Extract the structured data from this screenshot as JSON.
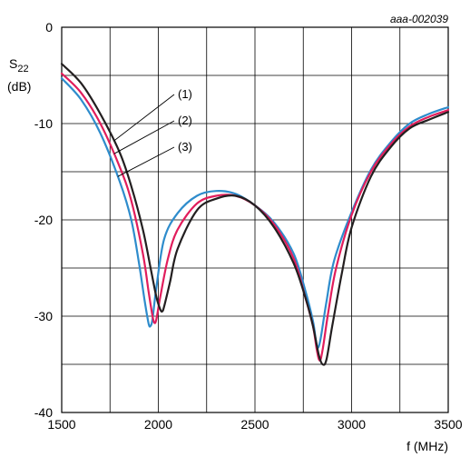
{
  "doc_id": "aaa-002039",
  "chart_data": {
    "type": "line",
    "ylabel_main": "S",
    "ylabel_sub": "22",
    "ylabel_unit": "(dB)",
    "xlabel": "f (MHz)",
    "xlim": [
      1500,
      3500
    ],
    "ylim": [
      -40,
      0
    ],
    "grid": true,
    "x_ticks": [
      1500,
      2000,
      2500,
      3000,
      3500
    ],
    "x_tick_labels": [
      "1500",
      "2000",
      "2500",
      "3000",
      "3500"
    ],
    "y_ticks": [
      0,
      -10,
      -20,
      -30,
      -40
    ],
    "y_tick_labels": [
      "0",
      "-10",
      "-20",
      "-30",
      "-40"
    ],
    "series": [
      {
        "name": "(1)",
        "color": "#231f20",
        "x": [
          1500,
          1600,
          1700,
          1800,
          1860,
          1920,
          1960,
          1990,
          2010,
          2020,
          2030,
          2060,
          2100,
          2200,
          2300,
          2400,
          2500,
          2600,
          2700,
          2760,
          2800,
          2830,
          2850,
          2870,
          2900,
          2950,
          3000,
          3100,
          3200,
          3300,
          3400,
          3500
        ],
        "y": [
          -3.8,
          -5.8,
          -9.0,
          -13.0,
          -16.5,
          -21.0,
          -25.0,
          -28.0,
          -29.3,
          -29.5,
          -29.0,
          -26.5,
          -23.0,
          -19.0,
          -17.8,
          -17.5,
          -18.5,
          -20.8,
          -24.5,
          -28.0,
          -31.0,
          -34.0,
          -35.0,
          -34.5,
          -31.0,
          -25.5,
          -20.8,
          -15.5,
          -12.5,
          -10.5,
          -9.6,
          -8.8
        ]
      },
      {
        "name": "(2)",
        "color": "#e11d5c",
        "x": [
          1500,
          1600,
          1700,
          1800,
          1860,
          1920,
          1950,
          1970,
          1980,
          1990,
          2010,
          2050,
          2100,
          2200,
          2300,
          2400,
          2500,
          2600,
          2700,
          2760,
          2800,
          2820,
          2835,
          2850,
          2880,
          2920,
          3000,
          3100,
          3200,
          3300,
          3400,
          3500
        ],
        "y": [
          -4.8,
          -6.8,
          -10.0,
          -14.5,
          -18.0,
          -23.5,
          -27.5,
          -30.0,
          -30.7,
          -30.3,
          -28.0,
          -24.0,
          -21.0,
          -18.3,
          -17.5,
          -17.5,
          -18.5,
          -20.5,
          -24.0,
          -28.0,
          -31.0,
          -33.5,
          -34.6,
          -33.5,
          -29.5,
          -25.0,
          -19.5,
          -15.0,
          -12.2,
          -10.3,
          -9.3,
          -8.6
        ]
      },
      {
        "name": "(3)",
        "color": "#2e8ccc",
        "x": [
          1500,
          1600,
          1700,
          1800,
          1860,
          1900,
          1930,
          1950,
          1960,
          1970,
          1990,
          2030,
          2100,
          2200,
          2300,
          2400,
          2500,
          2600,
          2700,
          2760,
          2800,
          2815,
          2825,
          2840,
          2870,
          2910,
          3000,
          3100,
          3200,
          3300,
          3400,
          3500
        ],
        "y": [
          -5.3,
          -7.5,
          -11.0,
          -16.0,
          -20.0,
          -24.5,
          -28.5,
          -30.8,
          -31.0,
          -30.3,
          -27.0,
          -22.0,
          -19.3,
          -17.5,
          -17.0,
          -17.3,
          -18.5,
          -20.3,
          -23.5,
          -27.3,
          -30.5,
          -32.5,
          -33.3,
          -32.3,
          -28.5,
          -24.2,
          -19.2,
          -14.8,
          -12.0,
          -10.0,
          -9.0,
          -8.3
        ]
      }
    ],
    "annotations": [
      {
        "text": "(1)",
        "series": "(1)",
        "at_x": 1770
      },
      {
        "text": "(2)",
        "series": "(2)",
        "at_x": 1770
      },
      {
        "text": "(3)",
        "series": "(3)",
        "at_x": 1790
      }
    ]
  }
}
